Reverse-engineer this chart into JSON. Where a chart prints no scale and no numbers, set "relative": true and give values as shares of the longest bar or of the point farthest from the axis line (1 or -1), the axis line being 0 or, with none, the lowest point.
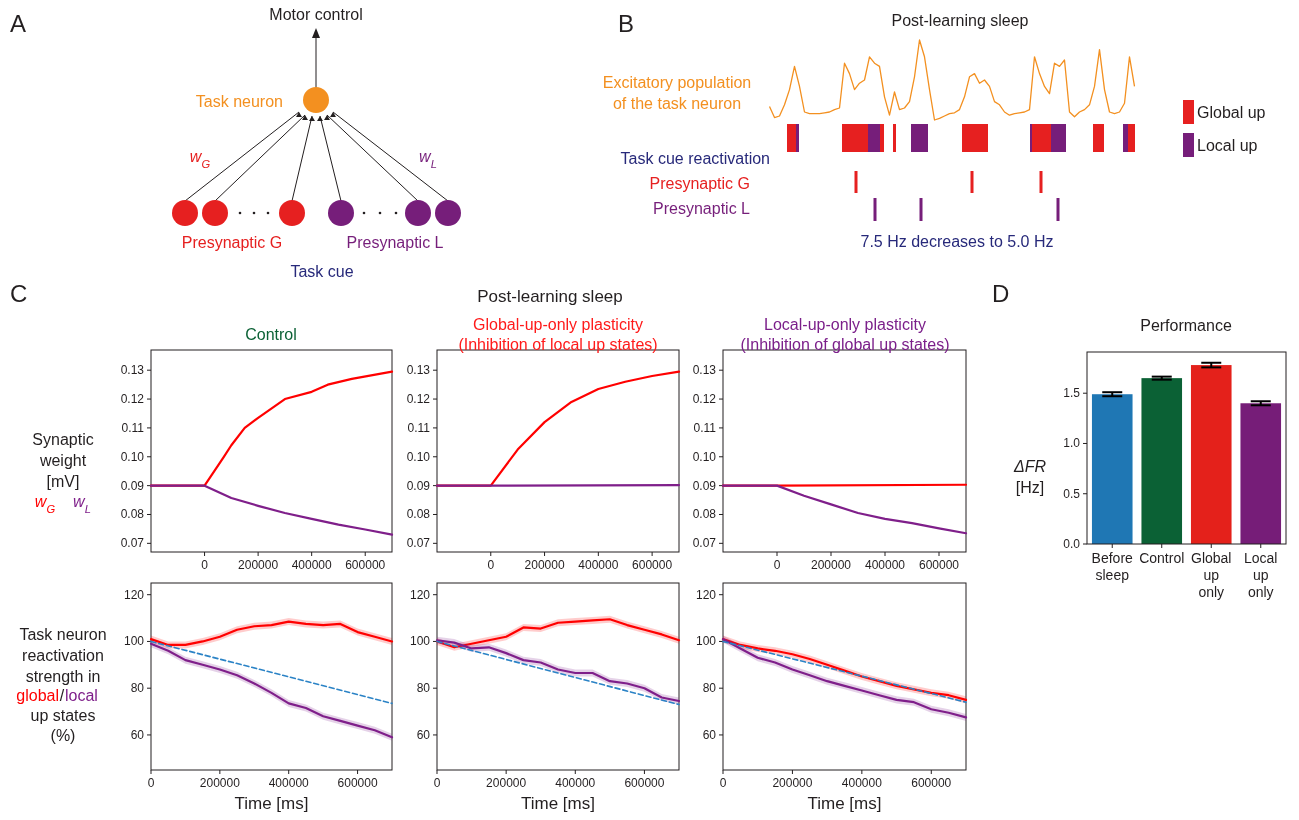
{
  "chart_data": [
    {
      "type": "other",
      "annotations": [
        "A",
        "Motor control",
        "Task neuron",
        "w$_{G}$",
        "w$_{L}$",
        "Presynaptic G",
        "Presynaptic L",
        "Task cue"
      ]
    },
    {
      "type": "line",
      "relative": true,
      "title": "Post-learning sleep",
      "annotations": [
        "B",
        "Task cue reactivation",
        "Presynaptic G",
        "Presynaptic L",
        "7.5 Hz decreases to 5.0 Hz",
        "Global up",
        "Local up"
      ],
      "categories": [
        null,
        null,
        null,
        null,
        null,
        null,
        null,
        null,
        null,
        null,
        null,
        null,
        null,
        null,
        null,
        null,
        null,
        null,
        null,
        null,
        null,
        null,
        null,
        null,
        null,
        null,
        null,
        null,
        null,
        null,
        null,
        null,
        null,
        null,
        null,
        null,
        null,
        null,
        null,
        null,
        null,
        null,
        null,
        null,
        null,
        null,
        null,
        null,
        null,
        null,
        null,
        null,
        null,
        null,
        null,
        null,
        null,
        null,
        null,
        null,
        null,
        null,
        null,
        null,
        null,
        null,
        null,
        null,
        null,
        null,
        null,
        null,
        null,
        null
      ],
      "series": [
        {
          "name": "Excitatory population of the task neuron",
          "color": "#f39020",
          "values": [
            0.17,
            0.03,
            0.05,
            0.19,
            0.38,
            0.67,
            0.42,
            0.1,
            0.08,
            0.08,
            0.08,
            0.09,
            0.1,
            0.13,
            0.15,
            0.71,
            0.58,
            0.38,
            0.46,
            0.5,
            0.79,
            0.71,
            0.67,
            0.29,
            0.06,
            0.35,
            0.13,
            0.15,
            0.23,
            0.54,
            1,
            0.79,
            0.38,
            0,
            0.02,
            0.05,
            0.08,
            0.09,
            0.13,
            0.29,
            0.54,
            0.58,
            0.46,
            0.5,
            0.42,
            0.23,
            0.19,
            0.1,
            0.06,
            0.08,
            0.09,
            0.1,
            0.13,
            0.79,
            0.58,
            0.42,
            0.33,
            0.71,
            0.67,
            0.75,
            0.1,
            0.04,
            0.1,
            0.13,
            0.19,
            0.42,
            0.88,
            0.38,
            0.1,
            0.08,
            0.1,
            0.21,
            0.79,
            0.42
          ]
        }
      ]
    },
    {
      "type": "line",
      "title": "Control",
      "ylabel": "Synaptic weight [mV]",
      "annotations": [
        "C"
      ],
      "xlim": [
        -200000,
        700000
      ],
      "xticks": [
        0,
        200000,
        400000,
        600000
      ],
      "ylim": [
        0.067,
        0.137
      ],
      "yticks": [
        0.07,
        0.08,
        0.09,
        {
          "value": 0.1,
          "label": "0.10"
        },
        0.11,
        0.12,
        0.13
      ],
      "series": [
        {
          "name": "w$_{G}$",
          "color": "#ff0000",
          "x": [
            -200000,
            0,
            72000,
            100000,
            150000,
            200000,
            300000,
            400000,
            460000,
            550000,
            700000
          ],
          "values": [
            0.09,
            0.09,
            0.1,
            0.104,
            0.11,
            0.1135,
            0.12,
            0.1225,
            0.125,
            0.127,
            0.1295
          ]
        },
        {
          "name": "w$_{L}$",
          "color": "#7f1f8a",
          "x": [
            -200000,
            0,
            100000,
            200000,
            300000,
            400000,
            500000,
            600000,
            700000
          ],
          "values": [
            0.09,
            0.09,
            0.0857,
            0.083,
            0.0805,
            0.0785,
            0.0765,
            0.0748,
            0.073
          ]
        }
      ]
    },
    {
      "type": "line",
      "title": "Global-up-only plasticity",
      "subtitle": "(Inhibition of local up states)",
      "annotations": [
        "Post-learning sleep"
      ],
      "xlim": [
        -200000,
        700000
      ],
      "xticks": [
        0,
        200000,
        400000,
        600000
      ],
      "ylim": [
        0.067,
        0.137
      ],
      "yticks": [
        0.07,
        0.08,
        0.09,
        {
          "value": 0.1,
          "label": "0.10"
        },
        0.11,
        0.12,
        0.13
      ],
      "series": [
        {
          "color": "#ff0000",
          "x": [
            -200000,
            0,
            100000,
            200000,
            300000,
            400000,
            500000,
            600000,
            700000
          ],
          "values": [
            0.09,
            0.09,
            0.1025,
            0.112,
            0.119,
            0.1235,
            0.126,
            0.128,
            0.1295
          ]
        },
        {
          "color": "#7f1f8a",
          "x": [
            -200000,
            0,
            700000
          ],
          "values": [
            0.09,
            0.09,
            0.0902
          ]
        }
      ]
    },
    {
      "type": "line",
      "title": "Local-up-only plasticity",
      "subtitle": "(Inhibition of global up states)",
      "xlim": [
        -200000,
        700000
      ],
      "xticks": [
        0,
        200000,
        400000,
        600000
      ],
      "ylim": [
        0.067,
        0.137
      ],
      "yticks": [
        0.07,
        0.08,
        0.09,
        {
          "value": 0.1,
          "label": "0.10"
        },
        0.11,
        0.12,
        0.13
      ],
      "series": [
        {
          "color": "#ff0000",
          "x": [
            -200000,
            0,
            700000
          ],
          "values": [
            0.09,
            0.09,
            0.0903
          ]
        },
        {
          "color": "#7f1f8a",
          "x": [
            -200000,
            0,
            100000,
            200000,
            300000,
            400000,
            500000,
            600000,
            700000
          ],
          "values": [
            0.09,
            0.09,
            0.0865,
            0.0835,
            0.0805,
            0.0785,
            0.077,
            0.0752,
            0.0735
          ]
        }
      ]
    },
    {
      "type": "line",
      "ylabel": "Task neuron reactivation strength in",
      "xlabel": "Time [ms]",
      "annotations": [
        "/",
        "up states",
        "(%)"
      ],
      "xlim": [
        0,
        700000
      ],
      "xticks": [
        0,
        200000,
        400000,
        600000
      ],
      "ylim": [
        45,
        125
      ],
      "yticks": [
        60,
        80,
        100,
        120
      ],
      "series": [
        {
          "name": "global",
          "color": "#ff0000",
          "x": [
            0,
            50000,
            100000,
            150000,
            200000,
            250000,
            300000,
            350000,
            400000,
            450000,
            500000,
            550000,
            600000,
            650000,
            700000
          ],
          "values": [
            101,
            98.5,
            98.5,
            100,
            102,
            105,
            106.5,
            107,
            108.5,
            107.5,
            107,
            107.5,
            104,
            102,
            100
          ],
          "lower": [
            99.5,
            97,
            97,
            98.5,
            100.5,
            103.5,
            105,
            105.5,
            107,
            106,
            105.5,
            106,
            102.5,
            100.5,
            98.5
          ],
          "upper": [
            102.5,
            100,
            100,
            101.5,
            103.5,
            106.5,
            108,
            108.5,
            110,
            109,
            108.5,
            109,
            105.5,
            103.5,
            101.5
          ]
        },
        {
          "name": "local",
          "color": "#7f1f8a",
          "x": [
            0,
            50000,
            100000,
            150000,
            200000,
            250000,
            300000,
            350000,
            400000,
            450000,
            500000,
            550000,
            600000,
            650000,
            700000
          ],
          "values": [
            99,
            96,
            92,
            90,
            88,
            85.5,
            82,
            78,
            73.5,
            71.5,
            68,
            66,
            64,
            62,
            59
          ],
          "lower": [
            97.5,
            94.5,
            90.5,
            88.5,
            86.5,
            84,
            80.5,
            76.5,
            72,
            70,
            66.5,
            64.5,
            62.5,
            60.5,
            57.5
          ],
          "upper": [
            100.5,
            97.5,
            93.5,
            91.5,
            89.5,
            87,
            83.5,
            79.5,
            75,
            73,
            69.5,
            67.5,
            65.5,
            63.5,
            60.5
          ]
        },
        {
          "color": "#2b83c6",
          "line_style": "dashed",
          "x": [
            0,
            700000
          ],
          "values": [
            100,
            73.5
          ]
        }
      ]
    },
    {
      "type": "line",
      "xlabel": "Time [ms]",
      "xlim": [
        0,
        700000
      ],
      "xticks": [
        0,
        200000,
        400000,
        600000
      ],
      "ylim": [
        45,
        125
      ],
      "yticks": [
        60,
        80,
        100,
        120
      ],
      "series": [
        {
          "color": "#ff0000",
          "x": [
            0,
            50000,
            100000,
            150000,
            200000,
            250000,
            300000,
            350000,
            400000,
            450000,
            500000,
            550000,
            600000,
            650000,
            700000
          ],
          "values": [
            100,
            97.5,
            99,
            100.5,
            102,
            106,
            105.5,
            108,
            108.5,
            109,
            109.5,
            107,
            105,
            103,
            100.5
          ],
          "lower": [
            98.5,
            96,
            97.5,
            99,
            100.5,
            104.5,
            104,
            106.5,
            107,
            107.5,
            108,
            105.5,
            103.5,
            101.5,
            99
          ],
          "upper": [
            101.5,
            99,
            100.5,
            102,
            103.5,
            107.5,
            107,
            109.5,
            110,
            110.5,
            111,
            108.5,
            106.5,
            104.5,
            102
          ]
        },
        {
          "color": "#7f1f8a",
          "x": [
            0,
            50000,
            100000,
            150000,
            200000,
            250000,
            300000,
            350000,
            400000,
            450000,
            500000,
            550000,
            600000,
            650000,
            700000
          ],
          "values": [
            100.5,
            99.5,
            97,
            97.5,
            95,
            92,
            91,
            88,
            86.5,
            86.5,
            83,
            82,
            80,
            76,
            74.5
          ],
          "lower": [
            99,
            98,
            95.5,
            96,
            93.5,
            90.5,
            89.5,
            86.5,
            85,
            85,
            81.5,
            80.5,
            78.5,
            74.5,
            73
          ],
          "upper": [
            102,
            101,
            98.5,
            99,
            96.5,
            93.5,
            92.5,
            89.5,
            88,
            88,
            84.5,
            83.5,
            81.5,
            77.5,
            76
          ]
        },
        {
          "color": "#2b83c6",
          "line_style": "dashed",
          "x": [
            0,
            700000
          ],
          "values": [
            100,
            73
          ]
        }
      ]
    },
    {
      "type": "line",
      "xlabel": "Time [ms]",
      "xlim": [
        0,
        700000
      ],
      "xticks": [
        0,
        200000,
        400000,
        600000
      ],
      "ylim": [
        45,
        125
      ],
      "yticks": [
        60,
        80,
        100,
        120
      ],
      "series": [
        {
          "color": "#ff0000",
          "x": [
            0,
            50000,
            100000,
            150000,
            200000,
            250000,
            300000,
            350000,
            400000,
            450000,
            500000,
            550000,
            600000,
            650000,
            700000
          ],
          "values": [
            101,
            98.5,
            97,
            96,
            94.5,
            92.5,
            90,
            87.5,
            85,
            83,
            81,
            79.5,
            78,
            77,
            75
          ],
          "lower": [
            99.5,
            97,
            95.5,
            94.5,
            93,
            91,
            88.5,
            86,
            83.5,
            81.5,
            79.5,
            78,
            76.5,
            75.5,
            73.5
          ],
          "upper": [
            102.5,
            100,
            98.5,
            97.5,
            96,
            94,
            91.5,
            89,
            86.5,
            84.5,
            82.5,
            81,
            79.5,
            78.5,
            76.5
          ]
        },
        {
          "color": "#7f1f8a",
          "x": [
            0,
            50000,
            100000,
            150000,
            200000,
            250000,
            300000,
            350000,
            400000,
            450000,
            500000,
            550000,
            600000,
            650000,
            700000
          ],
          "values": [
            101,
            97,
            93,
            91,
            88,
            85.5,
            83,
            81,
            79,
            77,
            75,
            74,
            71,
            69.5,
            67.5
          ],
          "lower": [
            99.5,
            95.5,
            91.5,
            89.5,
            86.5,
            84,
            81.5,
            79.5,
            77.5,
            75.5,
            73.5,
            72.5,
            69.5,
            68,
            66
          ],
          "upper": [
            102.5,
            98.5,
            94.5,
            92.5,
            89.5,
            87,
            84.5,
            82.5,
            80.5,
            78.5,
            76.5,
            75.5,
            72.5,
            71,
            69
          ]
        },
        {
          "color": "#2b83c6",
          "line_style": "dashed",
          "x": [
            0,
            700000
          ],
          "values": [
            100,
            74
          ]
        }
      ]
    },
    {
      "type": "bar",
      "title": "Performance",
      "ylabel": "ΔFR [Hz]",
      "annotations": [
        "D"
      ],
      "categories": [
        "Before sleep",
        "Control",
        "Global up only",
        "Local up only"
      ],
      "values": [
        1.49,
        1.65,
        1.78,
        1.4
      ],
      "colors": [
        "#1f77b4",
        "#0b6135",
        "#e4211b",
        "#761d78"
      ],
      "errors": [
        0.02,
        0.015,
        0.023,
        0.02
      ],
      "ylim": [
        0,
        1.91
      ],
      "yticks": [
        {
          "value": 0,
          "label": "0.0"
        },
        0.5,
        {
          "value": 1,
          "label": "1.0"
        },
        1.5
      ]
    }
  ]
}
